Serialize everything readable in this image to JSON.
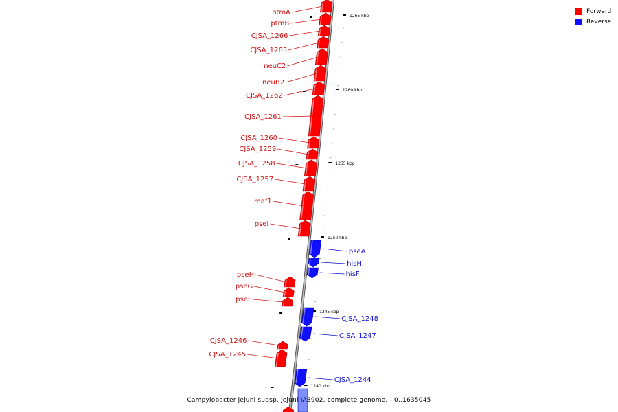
{
  "colors": {
    "forward": "#ff0000",
    "reverse": "#1010ff",
    "backbone": "#8a8a8a",
    "label_forward": "#d01010",
    "label_reverse": "#1010d0"
  },
  "legend": {
    "forward": "Forward",
    "reverse": "Reverse"
  },
  "caption": "Campylobacter jejuni subsp. jejuni IA3902, complete genome. - 0..1635045",
  "ticks": [
    "1265 kbp",
    "1260 kbp",
    "1255 kbp",
    "1250 kbp",
    "1245 kbp",
    "1240 kbp"
  ],
  "genes_forward": [
    "ptmA",
    "ptmB",
    "CJSA_1266",
    "CJSA_1265",
    "neuC2",
    "neuB2",
    "CJSA_1262",
    "CJSA_1261",
    "CJSA_1260",
    "CJSA_1259",
    "CJSA_1258",
    "CJSA_1257",
    "maf1",
    "pseI",
    "pseH",
    "pseG",
    "pseF",
    "CJSA_1246",
    "CJSA_1245"
  ],
  "genes_reverse": [
    "pseA",
    "hisH",
    "hisF",
    "CJSA_1248",
    "CJSA_1247",
    "CJSA_1244"
  ]
}
